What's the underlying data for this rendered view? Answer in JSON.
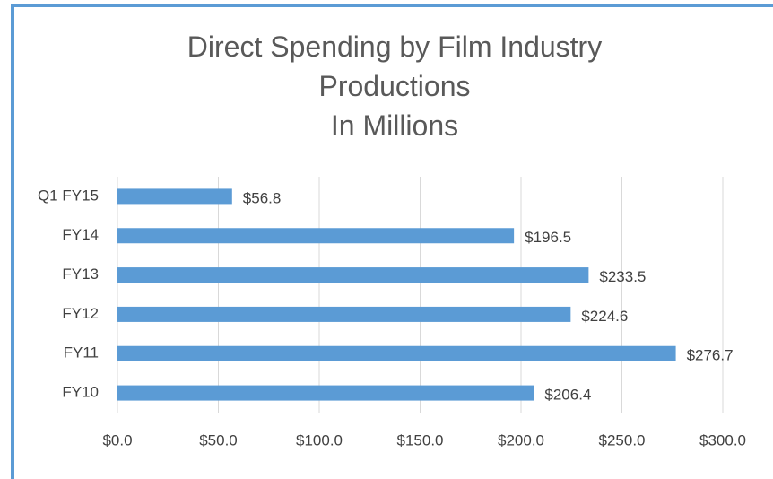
{
  "chart_data": {
    "type": "bar",
    "orientation": "horizontal",
    "title": "Direct Spending by Film Industry Productions",
    "subtitle": "In Millions",
    "categories": [
      "FY10",
      "FY11",
      "FY12",
      "FY13",
      "FY14",
      "Q1 FY15"
    ],
    "values": [
      206.4,
      276.7,
      224.6,
      233.5,
      196.5,
      56.8
    ],
    "value_labels": [
      "$206.4",
      "$276.7",
      "$224.6",
      "$233.5",
      "$196.5",
      "$56.8"
    ],
    "color": "#5b9bd5",
    "xlim": [
      0,
      300
    ],
    "xticks": [
      {
        "value": 0,
        "label": "$0.0"
      },
      {
        "value": 50,
        "label": "$50.0"
      },
      {
        "value": 100,
        "label": "$100.0"
      },
      {
        "value": 150,
        "label": "$150.0"
      },
      {
        "value": 200,
        "label": "$200.0"
      },
      {
        "value": 250,
        "label": "$250.0"
      },
      {
        "value": 300,
        "label": "$300.0"
      }
    ],
    "grid": true
  }
}
